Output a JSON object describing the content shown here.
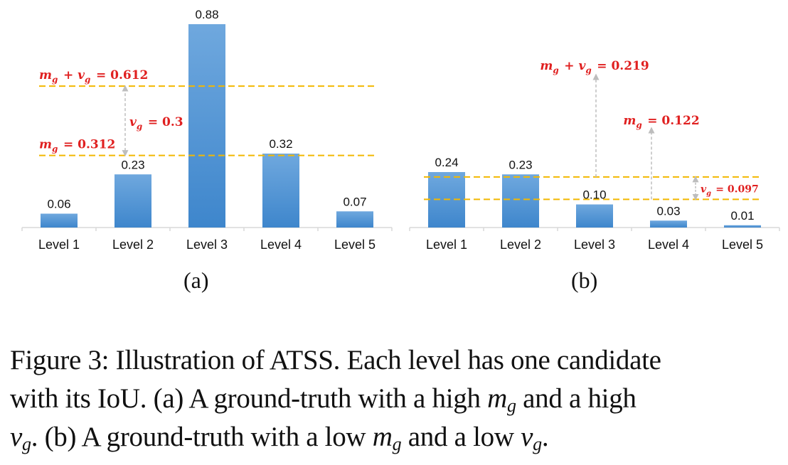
{
  "chart_data": [
    {
      "type": "bar",
      "panel_label": "(a)",
      "categories": [
        "Level 1",
        "Level 2",
        "Level 3",
        "Level 4",
        "Level 5"
      ],
      "values": [
        0.06,
        0.23,
        0.88,
        0.32,
        0.07
      ],
      "value_labels": [
        "0.06",
        "0.23",
        "0.88",
        "0.32",
        "0.07"
      ],
      "ylim": [
        0,
        0.9
      ],
      "grid": false,
      "bar_color": "#5b9bd5",
      "threshold_color": "#f2b800",
      "annotation_color": "#e02020",
      "lines": [
        {
          "value": 0.612,
          "label": "m_g + v_g = 0.612"
        },
        {
          "value": 0.312,
          "label": "m_g = 0.312"
        }
      ],
      "annotations": [
        {
          "label": "v_g = 0.3",
          "from": 0.312,
          "to": 0.612
        }
      ]
    },
    {
      "type": "bar",
      "panel_label": "(b)",
      "categories": [
        "Level 1",
        "Level 2",
        "Level 3",
        "Level 4",
        "Level 5"
      ],
      "values": [
        0.24,
        0.23,
        0.1,
        0.03,
        0.01
      ],
      "value_labels": [
        "0.24",
        "0.23",
        "0.10",
        "0.03",
        "0.01"
      ],
      "ylim": [
        0,
        0.9
      ],
      "grid": false,
      "bar_color": "#5b9bd5",
      "threshold_color": "#f2b800",
      "annotation_color": "#e02020",
      "lines": [
        {
          "value": 0.219
        },
        {
          "value": 0.122
        }
      ],
      "annotations": [
        {
          "label": "m_g + v_g = 0.219",
          "value": 0.219
        },
        {
          "label": "m_g = 0.122",
          "value": 0.122
        },
        {
          "label": "v_g = 0.097",
          "from": 0.122,
          "to": 0.219
        }
      ]
    }
  ],
  "caption": {
    "line1": "Figure 3: Illustration of ATSS. Each level has one candidate",
    "line2_a": "with its IoU. (a) A ground-truth with a high ",
    "line2_b": " and a high",
    "line3_a": ". (b) A ground-truth with a low ",
    "line3_b": " and a low ",
    "line3_c": ".",
    "m": "m",
    "v": "v",
    "g": "g"
  }
}
